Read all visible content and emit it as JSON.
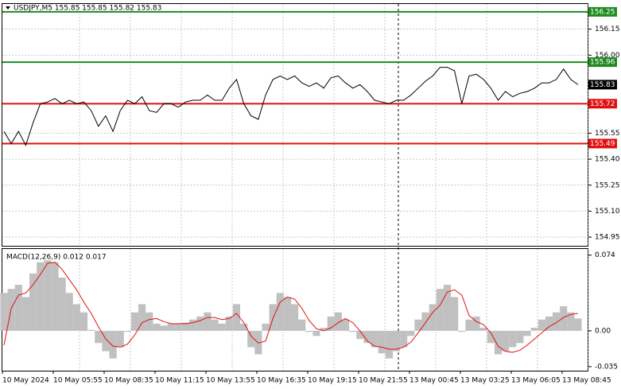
{
  "chart_data": {
    "type": "line",
    "title": "USDJPY,M5  155.85 155.85 155.82 155.83",
    "x_labels": [
      "10 May 2024",
      "10 May 05:55",
      "10 May 08:35",
      "10 May 11:15",
      "10 May 13:55",
      "10 May 16:35",
      "10 May 19:15",
      "10 May 21:55",
      "13 May 00:45",
      "13 May 03:25",
      "13 May 06:05",
      "13 May 08:45"
    ],
    "ylim": [
      154.9,
      156.3
    ],
    "yticks": [
      {
        "value": 154.95,
        "label": "154.95"
      },
      {
        "value": 155.1,
        "label": "155.10"
      },
      {
        "value": 155.25,
        "label": "155.25"
      },
      {
        "value": 155.4,
        "label": "155.40"
      },
      {
        "value": 155.55,
        "label": "155.55"
      },
      {
        "value": 156.0,
        "label": "156.00"
      },
      {
        "value": 156.15,
        "label": "156.15"
      }
    ],
    "grid": true,
    "series": [
      {
        "color": "#000000",
        "values": [
          155.56,
          155.49,
          155.56,
          155.48,
          155.61,
          155.72,
          155.73,
          155.75,
          155.72,
          155.74,
          155.72,
          155.73,
          155.68,
          155.59,
          155.65,
          155.56,
          155.68,
          155.74,
          155.72,
          155.76,
          155.68,
          155.67,
          155.72,
          155.72,
          155.7,
          155.73,
          155.74,
          155.74,
          155.77,
          155.74,
          155.74,
          155.81,
          155.86,
          155.72,
          155.65,
          155.63,
          155.77,
          155.86,
          155.88,
          155.86,
          155.88,
          155.84,
          155.82,
          155.84,
          155.81,
          155.87,
          155.88,
          155.84,
          155.81,
          155.83,
          155.79,
          155.74,
          155.73,
          155.72,
          155.74,
          155.74,
          155.77,
          155.81,
          155.85,
          155.88,
          155.93,
          155.93,
          155.91,
          155.72,
          155.88,
          155.89,
          155.86,
          155.81,
          155.74,
          155.79,
          155.76,
          155.78,
          155.79,
          155.81,
          155.84,
          155.84,
          155.86,
          155.92,
          155.86,
          155.83
        ]
      }
    ],
    "levels": [
      {
        "value": 156.25,
        "color": "#1e8c1e"
      },
      {
        "value": 155.96,
        "color": "#1e8c1e"
      },
      {
        "value": 155.72,
        "color": "#e01010"
      },
      {
        "value": 155.49,
        "color": "#e01010"
      }
    ],
    "current_price": 155.83,
    "macd": {
      "label": "MACD(12,26,9) 0.012 0.017",
      "ylim": [
        -0.039,
        0.08
      ],
      "yticks": [
        0.074,
        {
          "value": 0,
          "label": "0.00"
        },
        -0.035
      ],
      "histogram_color": "#c0c0c0",
      "signal_color": "#e01010",
      "histogram": [
        0.037,
        0.041,
        0.045,
        0.033,
        0.056,
        0.067,
        0.069,
        0.067,
        0.052,
        0.037,
        0.026,
        0.018,
        0.001,
        -0.012,
        -0.02,
        -0.027,
        -0.016,
        -0.001,
        0.018,
        0.026,
        0.018,
        0.007,
        0.005,
        0.007,
        0.007,
        0.008,
        0.011,
        0.014,
        0.018,
        0.011,
        0.007,
        0.014,
        0.026,
        0.007,
        -0.016,
        -0.023,
        0.007,
        0.026,
        0.037,
        0.033,
        0.026,
        0.011,
        -0.001,
        -0.005,
        0.003,
        0.014,
        0.018,
        0.011,
        -0.001,
        -0.008,
        -0.012,
        -0.016,
        -0.022,
        -0.027,
        -0.02,
        -0.016,
        -0.005,
        0.011,
        0.018,
        0.026,
        0.041,
        0.045,
        0.033,
        -0.001,
        0.011,
        0.014,
        0.003,
        -0.012,
        -0.023,
        -0.02,
        -0.016,
        -0.012,
        -0.005,
        0.003,
        0.011,
        0.014,
        0.018,
        0.024,
        0.018,
        0.012
      ],
      "signal": [
        -0.014,
        0.022,
        0.035,
        0.037,
        0.045,
        0.055,
        0.066,
        0.067,
        0.06,
        0.05,
        0.04,
        0.028,
        0.017,
        0.004,
        -0.008,
        -0.015,
        -0.016,
        -0.013,
        -0.004,
        0.008,
        0.011,
        0.012,
        0.009,
        0.007,
        0.007,
        0.007,
        0.008,
        0.01,
        0.013,
        0.013,
        0.011,
        0.012,
        0.017,
        0.008,
        -0.005,
        -0.012,
        -0.01,
        0.012,
        0.028,
        0.033,
        0.031,
        0.022,
        0.01,
        0.002,
        0.0,
        0.003,
        0.008,
        0.012,
        0.008,
        0.0,
        -0.01,
        -0.015,
        -0.016,
        -0.018,
        -0.018,
        -0.016,
        -0.011,
        -0.002,
        0.008,
        0.018,
        0.025,
        0.038,
        0.04,
        0.035,
        0.015,
        0.009,
        0.006,
        -0.002,
        -0.015,
        -0.02,
        -0.021,
        -0.019,
        -0.014,
        -0.008,
        -0.002,
        0.004,
        0.008,
        0.013,
        0.016,
        0.017
      ]
    }
  }
}
